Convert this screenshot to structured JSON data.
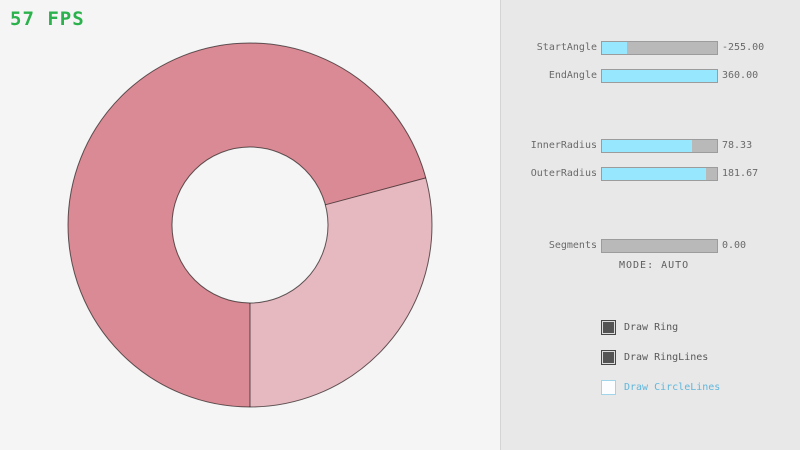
{
  "window": {
    "fps_label": "57 FPS",
    "fps_color": "#2bb24c",
    "bg_color": "#f5f5f5",
    "panel_bg_color": "#e8e8e8"
  },
  "ring": {
    "color_overlap": "#d98a94",
    "color_single": "#e6b8bf",
    "line_color": "rgba(0,0,0,0.6)"
  },
  "panel": {
    "sliders": [
      {
        "label": "StartAngle",
        "value": "-255.00",
        "fill_pct": 21.7
      },
      {
        "label": "EndAngle",
        "value": "360.00",
        "fill_pct": 100
      },
      {
        "label": "InnerRadius",
        "value": "78.33",
        "fill_pct": 78.3
      },
      {
        "label": "OuterRadius",
        "value": "181.67",
        "fill_pct": 90.8
      },
      {
        "label": "Segments",
        "value": "0.00",
        "fill_pct": 0
      }
    ],
    "mode_label": "MODE: AUTO",
    "checkboxes": [
      {
        "label": "Draw Ring",
        "checked": true
      },
      {
        "label": "Draw RingLines",
        "checked": true
      },
      {
        "label": "Draw CircleLines",
        "checked": false
      }
    ],
    "accent_fill_color": "#97e8ff"
  }
}
